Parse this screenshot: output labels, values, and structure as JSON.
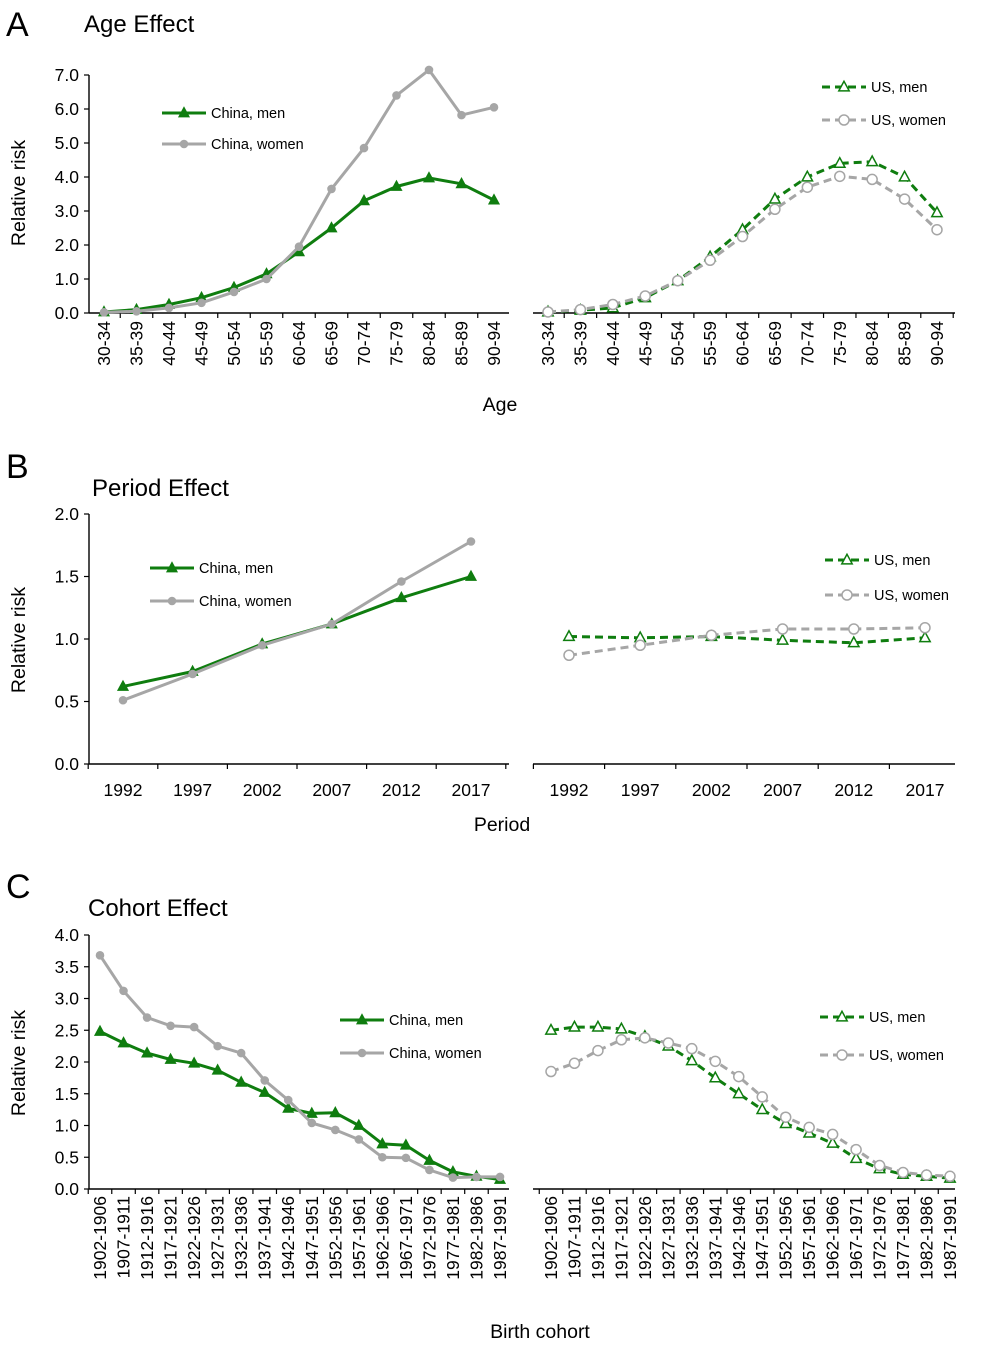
{
  "colors": {
    "china_men": "#0f7d0f",
    "china_women": "#a6a6a6",
    "us_men": "#0f7d0f",
    "us_women": "#a6a6a6",
    "axis": "#000000"
  },
  "panels": {
    "A": {
      "letter": "A",
      "title": "Age Effect",
      "ylabel": "Relative risk",
      "xlabel": "Age"
    },
    "B": {
      "letter": "B",
      "title": "Period Effect",
      "ylabel": "Relative risk",
      "xlabel": "Period"
    },
    "C": {
      "letter": "C",
      "title": "Cohort Effect",
      "ylabel": "Relative risk",
      "xlabel": "Birth cohort"
    }
  },
  "legend": {
    "china_men": "China, men",
    "china_women": "China, women",
    "us_men": "US, men",
    "us_women": "US, women"
  },
  "chart_data": [
    {
      "id": "A-china",
      "type": "line",
      "panel": "A",
      "title": "Age Effect",
      "xlabel": "Age",
      "ylabel": "Relative risk",
      "categories": [
        "30-34",
        "35-39",
        "40-44",
        "45-49",
        "50-54",
        "55-59",
        "60-64",
        "65-69",
        "70-74",
        "75-79",
        "80-84",
        "85-89",
        "90-94"
      ],
      "ylim": [
        0,
        7
      ],
      "yticks": [
        "0.0",
        "1.0",
        "2.0",
        "3.0",
        "4.0",
        "5.0",
        "6.0",
        "7.0"
      ],
      "grid": false,
      "legend_position": "top-left",
      "series": [
        {
          "name": "China, men",
          "key": "china_men",
          "marker": "triangle-filled",
          "dash": false,
          "values": [
            0.03,
            0.1,
            0.25,
            0.45,
            0.75,
            1.15,
            1.8,
            2.5,
            3.3,
            3.72,
            3.97,
            3.8,
            3.32
          ]
        },
        {
          "name": "China, women",
          "key": "china_women",
          "marker": "circle-filled",
          "dash": false,
          "values": [
            0.02,
            0.05,
            0.15,
            0.3,
            0.62,
            1.0,
            1.95,
            3.65,
            4.85,
            6.4,
            7.15,
            5.82,
            6.05
          ]
        }
      ]
    },
    {
      "id": "A-us",
      "type": "line",
      "panel": "A",
      "categories": [
        "30-34",
        "35-39",
        "40-44",
        "45-49",
        "50-54",
        "55-59",
        "60-64",
        "65-69",
        "70-74",
        "75-79",
        "80-84",
        "85-89",
        "90-94"
      ],
      "ylim": [
        0,
        7
      ],
      "grid": false,
      "legend_position": "top-right",
      "series": [
        {
          "name": "US, men",
          "key": "us_men",
          "marker": "triangle-open",
          "dash": true,
          "values": [
            0.03,
            0.08,
            0.15,
            0.45,
            0.95,
            1.65,
            2.45,
            3.35,
            4.0,
            4.4,
            4.45,
            4.0,
            2.95
          ]
        },
        {
          "name": "US, women",
          "key": "us_women",
          "marker": "circle-open",
          "dash": true,
          "values": [
            0.03,
            0.1,
            0.25,
            0.5,
            0.95,
            1.55,
            2.25,
            3.05,
            3.7,
            4.02,
            3.93,
            3.35,
            2.45
          ]
        }
      ]
    },
    {
      "id": "B-china",
      "type": "line",
      "panel": "B",
      "title": "Period Effect",
      "xlabel": "Period",
      "ylabel": "Relative risk",
      "categories": [
        "1992",
        "1997",
        "2002",
        "2007",
        "2012",
        "2017"
      ],
      "ylim": [
        0,
        2
      ],
      "yticks": [
        "0.0",
        "0.5",
        "1.0",
        "1.5",
        "2.0"
      ],
      "grid": false,
      "legend_position": "top-left",
      "series": [
        {
          "name": "China, men",
          "key": "china_men",
          "marker": "triangle-filled",
          "dash": false,
          "values": [
            0.62,
            0.74,
            0.96,
            1.12,
            1.33,
            1.5
          ]
        },
        {
          "name": "China, women",
          "key": "china_women",
          "marker": "circle-filled",
          "dash": false,
          "values": [
            0.51,
            0.72,
            0.95,
            1.12,
            1.46,
            1.78
          ]
        }
      ]
    },
    {
      "id": "B-us",
      "type": "line",
      "panel": "B",
      "categories": [
        "1992",
        "1997",
        "2002",
        "2007",
        "2012",
        "2017"
      ],
      "ylim": [
        0,
        2
      ],
      "grid": false,
      "legend_position": "top-right",
      "series": [
        {
          "name": "US, men",
          "key": "us_men",
          "marker": "triangle-open",
          "dash": true,
          "values": [
            1.02,
            1.01,
            1.02,
            0.99,
            0.97,
            1.01
          ]
        },
        {
          "name": "US, women",
          "key": "us_women",
          "marker": "circle-open",
          "dash": true,
          "values": [
            0.87,
            0.95,
            1.03,
            1.08,
            1.08,
            1.09
          ]
        }
      ]
    },
    {
      "id": "C-china",
      "type": "line",
      "panel": "C",
      "title": "Cohort Effect",
      "xlabel": "Birth cohort",
      "ylabel": "Relative risk",
      "categories": [
        "1902-1906",
        "1907-1911",
        "1912-1916",
        "1917-1921",
        "1922-1926",
        "1927-1931",
        "1932-1936",
        "1937-1941",
        "1942-1946",
        "1947-1951",
        "1952-1956",
        "1957-1961",
        "1962-1966",
        "1967-1971",
        "1972-1976",
        "1977-1981",
        "1982-1986",
        "1987-1991"
      ],
      "ylim": [
        0,
        4
      ],
      "yticks": [
        "0.0",
        "0.5",
        "1.0",
        "1.5",
        "2.0",
        "2.5",
        "3.0",
        "3.5",
        "4.0"
      ],
      "grid": false,
      "legend_position": "right",
      "series": [
        {
          "name": "China, men",
          "key": "china_men",
          "marker": "triangle-filled",
          "dash": false,
          "values": [
            2.48,
            2.3,
            2.14,
            2.04,
            1.98,
            1.87,
            1.68,
            1.52,
            1.27,
            1.19,
            1.2,
            1.0,
            0.71,
            0.69,
            0.45,
            0.27,
            0.2,
            0.15
          ]
        },
        {
          "name": "China, women",
          "key": "china_women",
          "marker": "circle-filled",
          "dash": false,
          "values": [
            3.68,
            3.12,
            2.7,
            2.57,
            2.55,
            2.25,
            2.14,
            1.71,
            1.4,
            1.04,
            0.93,
            0.78,
            0.5,
            0.49,
            0.3,
            0.18,
            0.19,
            0.19
          ]
        }
      ]
    },
    {
      "id": "C-us",
      "type": "line",
      "panel": "C",
      "categories": [
        "1902-1906",
        "1907-1911",
        "1912-1916",
        "1917-1921",
        "1922-1926",
        "1927-1931",
        "1932-1936",
        "1937-1941",
        "1942-1946",
        "1947-1951",
        "1952-1956",
        "1957-1961",
        "1962-1966",
        "1967-1971",
        "1972-1976",
        "1977-1981",
        "1982-1986",
        "1987-1991"
      ],
      "ylim": [
        0,
        4
      ],
      "grid": false,
      "legend_position": "top-right",
      "series": [
        {
          "name": "US, men",
          "key": "us_men",
          "marker": "triangle-open",
          "dash": true,
          "values": [
            2.5,
            2.55,
            2.55,
            2.52,
            2.4,
            2.25,
            2.02,
            1.75,
            1.5,
            1.25,
            1.03,
            0.88,
            0.72,
            0.48,
            0.32,
            0.23,
            0.2,
            0.17
          ]
        },
        {
          "name": "US, women",
          "key": "us_women",
          "marker": "circle-open",
          "dash": true,
          "values": [
            1.85,
            1.98,
            2.18,
            2.35,
            2.38,
            2.3,
            2.21,
            2.01,
            1.77,
            1.45,
            1.13,
            0.97,
            0.86,
            0.62,
            0.37,
            0.26,
            0.22,
            0.2
          ]
        }
      ]
    }
  ]
}
